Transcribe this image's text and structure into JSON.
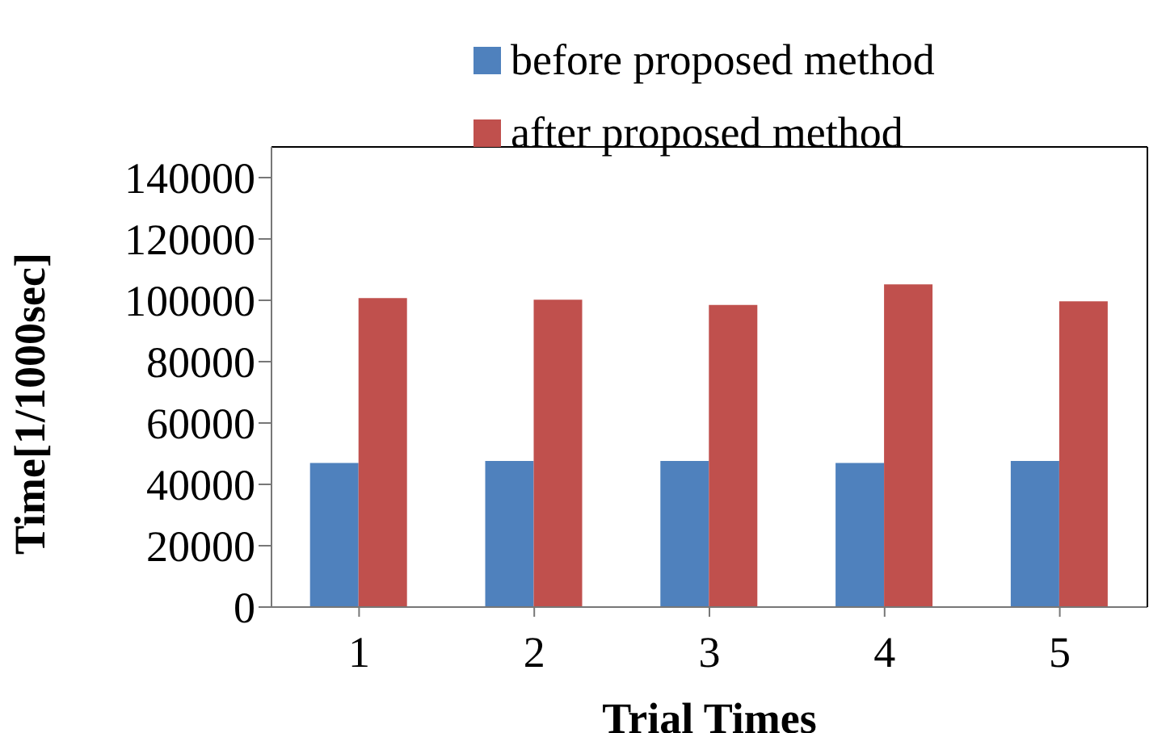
{
  "chart_data": {
    "type": "bar",
    "xlabel": "Trial Times",
    "ylabel": "Time[1/1000sec]",
    "categories": [
      "1",
      "2",
      "3",
      "4",
      "5"
    ],
    "series": [
      {
        "name": "before proposed method",
        "color": "#4f81bd",
        "values": [
          47000,
          47600,
          47600,
          47000,
          47600
        ]
      },
      {
        "name": "after proposed method",
        "color": "#c0504d",
        "values": [
          100700,
          100200,
          98500,
          105200,
          99700
        ]
      }
    ],
    "ylim": [
      0,
      150000
    ],
    "yticks": [
      0,
      20000,
      40000,
      60000,
      80000,
      100000,
      120000,
      140000
    ],
    "grid": false,
    "legend": "top"
  }
}
